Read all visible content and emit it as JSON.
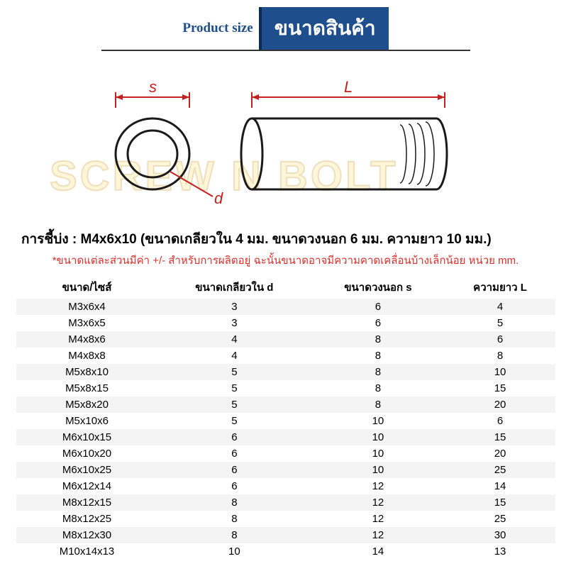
{
  "watermark_text": "SCREW N BOLT",
  "header": {
    "en": "Product size",
    "th": "ขนาดสินค้า"
  },
  "diagram": {
    "label_s": "s",
    "label_d": "d",
    "label_L": "L",
    "stroke_color": "#c52020",
    "shape_color": "#1a1a1a"
  },
  "spec": {
    "prefix": "การชี้บ่ง : ",
    "text": "M4x6x10 (ขนาดเกลียวใน 4 มม. ขนาดวงนอก 6 มม. ความยาว 10 มม.)"
  },
  "disclaimer": "*ขนาดแต่ละส่วนมีค่า +/- สำหรับการผลิตอยู่ ฉะนั้นขนาดอาจมีความคาดเคลื่อนบ้างเล็กน้อย หน่วย mm.",
  "table": {
    "headers": [
      "ขนาด/ไซส์",
      "ขนาดเกลียวใน d",
      "ขนาดวงนอก s",
      "ความยาว L"
    ],
    "rows": [
      [
        "M3x6x4",
        "3",
        "6",
        "4"
      ],
      [
        "M3x6x5",
        "3",
        "6",
        "5"
      ],
      [
        "M4x8x6",
        "4",
        "8",
        "6"
      ],
      [
        "M4x8x8",
        "4",
        "8",
        "8"
      ],
      [
        "M5x8x10",
        "5",
        "8",
        "10"
      ],
      [
        "M5x8x15",
        "5",
        "8",
        "15"
      ],
      [
        "M5x8x20",
        "5",
        "8",
        "20"
      ],
      [
        "M5x10x6",
        "5",
        "10",
        "6"
      ],
      [
        "M6x10x15",
        "6",
        "10",
        "15"
      ],
      [
        "M6x10x20",
        "6",
        "10",
        "20"
      ],
      [
        "M6x10x25",
        "6",
        "10",
        "25"
      ],
      [
        "M6x12x14",
        "6",
        "12",
        "14"
      ],
      [
        "M8x12x15",
        "8",
        "12",
        "15"
      ],
      [
        "M8x12x25",
        "8",
        "12",
        "25"
      ],
      [
        "M8x12x30",
        "8",
        "12",
        "30"
      ],
      [
        "M10x14x13",
        "10",
        "14",
        "13"
      ]
    ]
  }
}
